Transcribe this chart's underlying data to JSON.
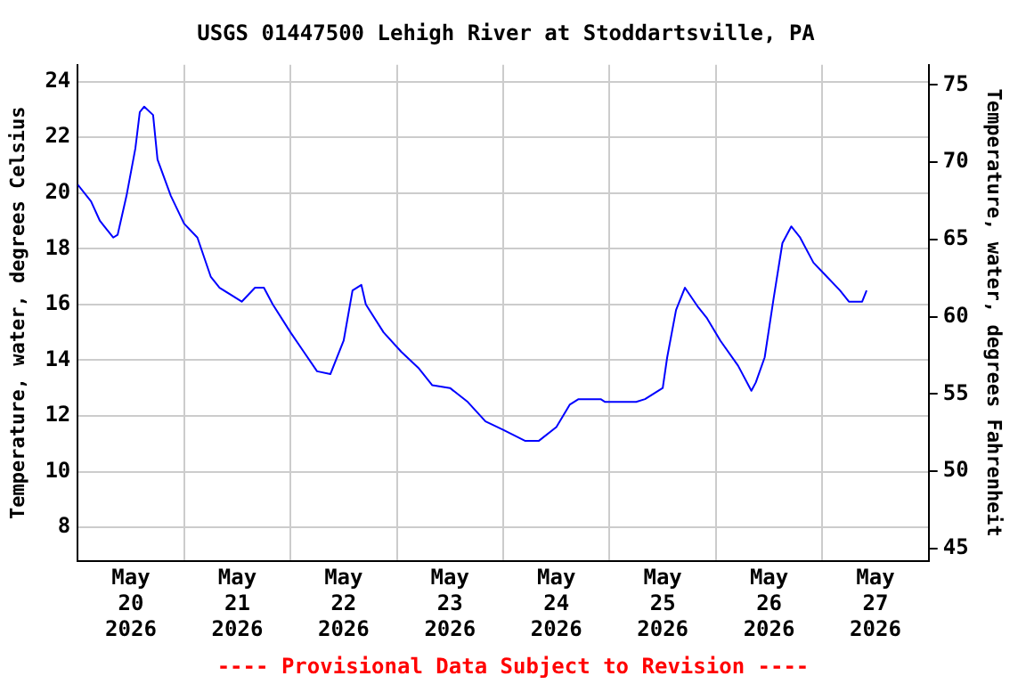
{
  "chart_data": {
    "type": "line",
    "title": "USGS 01447500 Lehigh River at Stoddartsville, PA",
    "ylabel": "Temperature, water, degrees Celsius",
    "y2label": "Temperature, water, degrees Fahrenheit",
    "annotations": [
      "---- Provisional Data Subject to Revision ----"
    ],
    "xlim": [
      "2026-05-20T00:00",
      "2026-05-28T00:00"
    ],
    "xticks": [
      {
        "value": "2026-05-20T12:00",
        "label": "May 20 2026"
      },
      {
        "value": "2026-05-21T00:00",
        "label": null
      },
      {
        "value": "2026-05-21T12:00",
        "label": "May 21 2026"
      },
      {
        "value": "2026-05-22T00:00",
        "label": null
      },
      {
        "value": "2026-05-22T12:00",
        "label": "May 22 2026"
      },
      {
        "value": "2026-05-23T00:00",
        "label": null
      },
      {
        "value": "2026-05-23T12:00",
        "label": "May 23 2026"
      },
      {
        "value": "2026-05-24T00:00",
        "label": null
      },
      {
        "value": "2026-05-24T12:00",
        "label": "May 24 2026"
      },
      {
        "value": "2026-05-25T00:00",
        "label": null
      },
      {
        "value": "2026-05-25T12:00",
        "label": "May 25 2026"
      },
      {
        "value": "2026-05-26T00:00",
        "label": null
      },
      {
        "value": "2026-05-26T12:00",
        "label": "May 26 2026"
      },
      {
        "value": "2026-05-27T00:00",
        "label": null
      },
      {
        "value": "2026-05-27T12:00",
        "label": "May 27 2026"
      }
    ],
    "ylim": [
      6.8,
      24.6
    ],
    "yticks": [
      8,
      10,
      12,
      14,
      16,
      18,
      20,
      22,
      24
    ],
    "y2lim": [
      44.2,
      76.3
    ],
    "y2ticks": [
      45,
      50,
      55,
      60,
      65,
      70,
      75
    ],
    "grid": true,
    "legend": false,
    "marker": "none",
    "line_style": "solid",
    "x": [
      "2026-05-20T00:00",
      "2026-05-20T03:00",
      "2026-05-20T05:00",
      "2026-05-20T08:00",
      "2026-05-20T09:00",
      "2026-05-20T11:00",
      "2026-05-20T13:00",
      "2026-05-20T14:00",
      "2026-05-20T15:00",
      "2026-05-20T17:00",
      "2026-05-20T18:00",
      "2026-05-20T21:00",
      "2026-05-21T00:00",
      "2026-05-21T03:00",
      "2026-05-21T06:00",
      "2026-05-21T08:00",
      "2026-05-21T11:00",
      "2026-05-21T13:00",
      "2026-05-21T16:00",
      "2026-05-21T18:00",
      "2026-05-21T20:00",
      "2026-05-22T00:00",
      "2026-05-22T03:00",
      "2026-05-22T06:00",
      "2026-05-22T09:00",
      "2026-05-22T12:00",
      "2026-05-22T14:00",
      "2026-05-22T16:00",
      "2026-05-22T17:00",
      "2026-05-22T21:00",
      "2026-05-23T01:00",
      "2026-05-23T05:00",
      "2026-05-23T08:00",
      "2026-05-23T12:00",
      "2026-05-23T16:00",
      "2026-05-23T20:00",
      "2026-05-24T00:00",
      "2026-05-24T05:00",
      "2026-05-24T08:00",
      "2026-05-24T12:00",
      "2026-05-24T15:00",
      "2026-05-24T17:00",
      "2026-05-24T22:00",
      "2026-05-24T23:00",
      "2026-05-25T06:00",
      "2026-05-25T08:00",
      "2026-05-25T12:00",
      "2026-05-25T13:00",
      "2026-05-25T15:00",
      "2026-05-25T17:00",
      "2026-05-25T20:00",
      "2026-05-25T22:00",
      "2026-05-26T01:00",
      "2026-05-26T05:00",
      "2026-05-26T08:00",
      "2026-05-26T09:00",
      "2026-05-26T11:00",
      "2026-05-26T13:00",
      "2026-05-26T15:00",
      "2026-05-26T17:00",
      "2026-05-26T19:00",
      "2026-05-26T22:00",
      "2026-05-27T01:00",
      "2026-05-27T04:00",
      "2026-05-27T06:00",
      "2026-05-27T09:00",
      "2026-05-27T10:00"
    ],
    "series": [
      {
        "color": "#0000ff",
        "values": [
          20.3,
          19.7,
          19.0,
          18.4,
          18.5,
          19.9,
          21.6,
          22.9,
          23.1,
          22.8,
          21.2,
          19.9,
          18.9,
          18.4,
          17.0,
          16.6,
          16.3,
          16.1,
          16.6,
          16.6,
          16.0,
          15.0,
          14.3,
          13.6,
          13.5,
          14.7,
          16.5,
          16.7,
          16.0,
          15.0,
          14.3,
          13.7,
          13.1,
          13.0,
          12.5,
          11.8,
          11.5,
          11.1,
          11.1,
          11.6,
          12.4,
          12.6,
          12.6,
          12.5,
          12.5,
          12.6,
          13.0,
          14.1,
          15.8,
          16.6,
          15.9,
          15.5,
          14.7,
          13.8,
          12.9,
          13.2,
          14.1,
          16.2,
          18.2,
          18.8,
          18.4,
          17.5,
          17.0,
          16.5,
          16.1,
          16.1,
          16.5
        ]
      }
    ]
  }
}
